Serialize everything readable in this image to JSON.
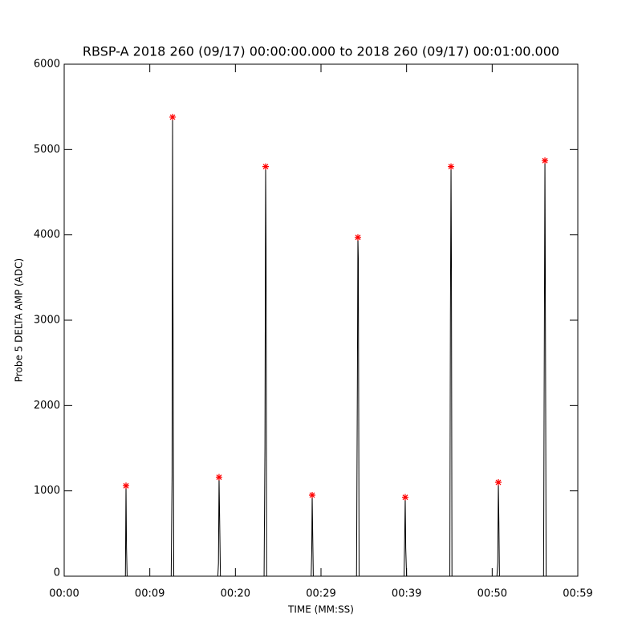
{
  "chart_data": {
    "type": "line",
    "title": "RBSP-A 2018 260 (09/17) 00:00:00.000 to 2018 260 (09/17) 00:01:00.000",
    "x_label": "TIME (MM:SS)",
    "y_label": "Probe 5 DELTA AMP (ADC)",
    "xlim": [
      0,
      60
    ],
    "xticks": [
      {
        "value": 0,
        "label": "00:00"
      },
      {
        "value": 10,
        "label": "00:09"
      },
      {
        "value": 20,
        "label": "00:20"
      },
      {
        "value": 30,
        "label": "00:29"
      },
      {
        "value": 40,
        "label": "00:39"
      },
      {
        "value": 50,
        "label": "00:50"
      },
      {
        "value": 60,
        "label": "00:59"
      }
    ],
    "ylim": [
      0,
      6000
    ],
    "yticks": [
      0,
      1000,
      2000,
      3000,
      4000,
      5000,
      6000
    ],
    "grid": false,
    "series": [
      {
        "color": "#000000",
        "mode": "line",
        "x": [
          6.6,
          7.15,
          7.22,
          7.28,
          7.35,
          12.5,
          12.6,
          12.66,
          12.7,
          12.8,
          17.95,
          18.02,
          18.09,
          18.15,
          18.25,
          23.35,
          23.45,
          23.53,
          23.58,
          23.65,
          28.85,
          28.92,
          28.97,
          29.03,
          29.1,
          34.15,
          34.25,
          34.31,
          34.36,
          34.45,
          39.7,
          39.78,
          39.84,
          39.9,
          40.0,
          45.05,
          45.12,
          45.19,
          45.24,
          45.3,
          50.55,
          50.65,
          50.72,
          50.78,
          50.85,
          56.0,
          56.1,
          56.16,
          56.2,
          56.3,
          58.1
        ],
        "values": [
          0,
          0,
          1060,
          330,
          0,
          0,
          1180,
          5380,
          3520,
          0,
          0,
          150,
          1160,
          740,
          0,
          0,
          1500,
          4800,
          3850,
          0,
          0,
          300,
          950,
          500,
          0,
          0,
          2250,
          3970,
          3720,
          0,
          0,
          480,
          925,
          330,
          0,
          0,
          3050,
          4800,
          3560,
          0,
          0,
          160,
          1100,
          650,
          0,
          0,
          3050,
          4870,
          3660,
          0,
          0
        ]
      },
      {
        "color": "#ff0000",
        "mode": "asterisk",
        "x": [
          7.22,
          12.66,
          18.09,
          23.53,
          28.97,
          34.31,
          39.84,
          45.19,
          50.72,
          56.16
        ],
        "values": [
          1060,
          5380,
          1160,
          4800,
          950,
          3970,
          925,
          4800,
          1100,
          4870
        ]
      }
    ]
  }
}
